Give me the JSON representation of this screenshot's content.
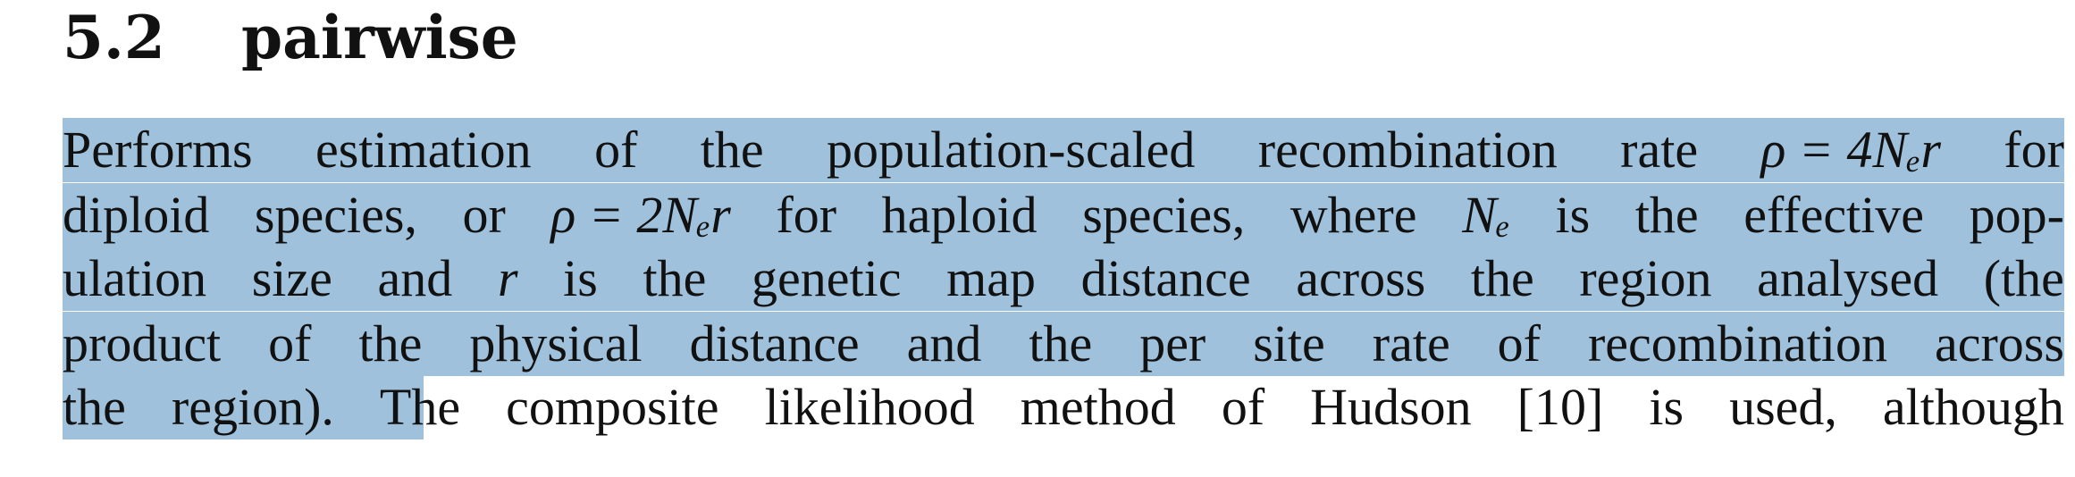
{
  "section": {
    "number": "5.2",
    "title": "pairwise"
  },
  "paragraph": {
    "lines": [
      [
        "Performs",
        "estimation",
        "of",
        "the",
        "population-scaled",
        "recombination",
        "rate",
        "ρ = 4Nₑr",
        "for"
      ],
      [
        "diploid",
        "species,",
        "or",
        "ρ = 2Nₑr",
        "for",
        "haploid",
        "species,",
        "where",
        "Nₑ",
        "is",
        "the",
        "effective",
        "pop-"
      ],
      [
        "ulation",
        "size",
        "and",
        "r",
        "is",
        "the",
        "genetic",
        "map",
        "distance",
        "across",
        "the",
        "region",
        "analysed",
        "(the"
      ],
      [
        "product",
        "of",
        "the",
        "physical",
        "distance",
        "and",
        "the",
        "per",
        "site",
        "rate",
        "of",
        "recombination",
        "across"
      ],
      [
        "the",
        "region).",
        "The",
        "composite",
        "likelihood",
        "method",
        "of",
        "Hudson",
        "[10]",
        "is",
        "used,",
        "although"
      ]
    ],
    "highlight_color": "#9fc1db"
  }
}
